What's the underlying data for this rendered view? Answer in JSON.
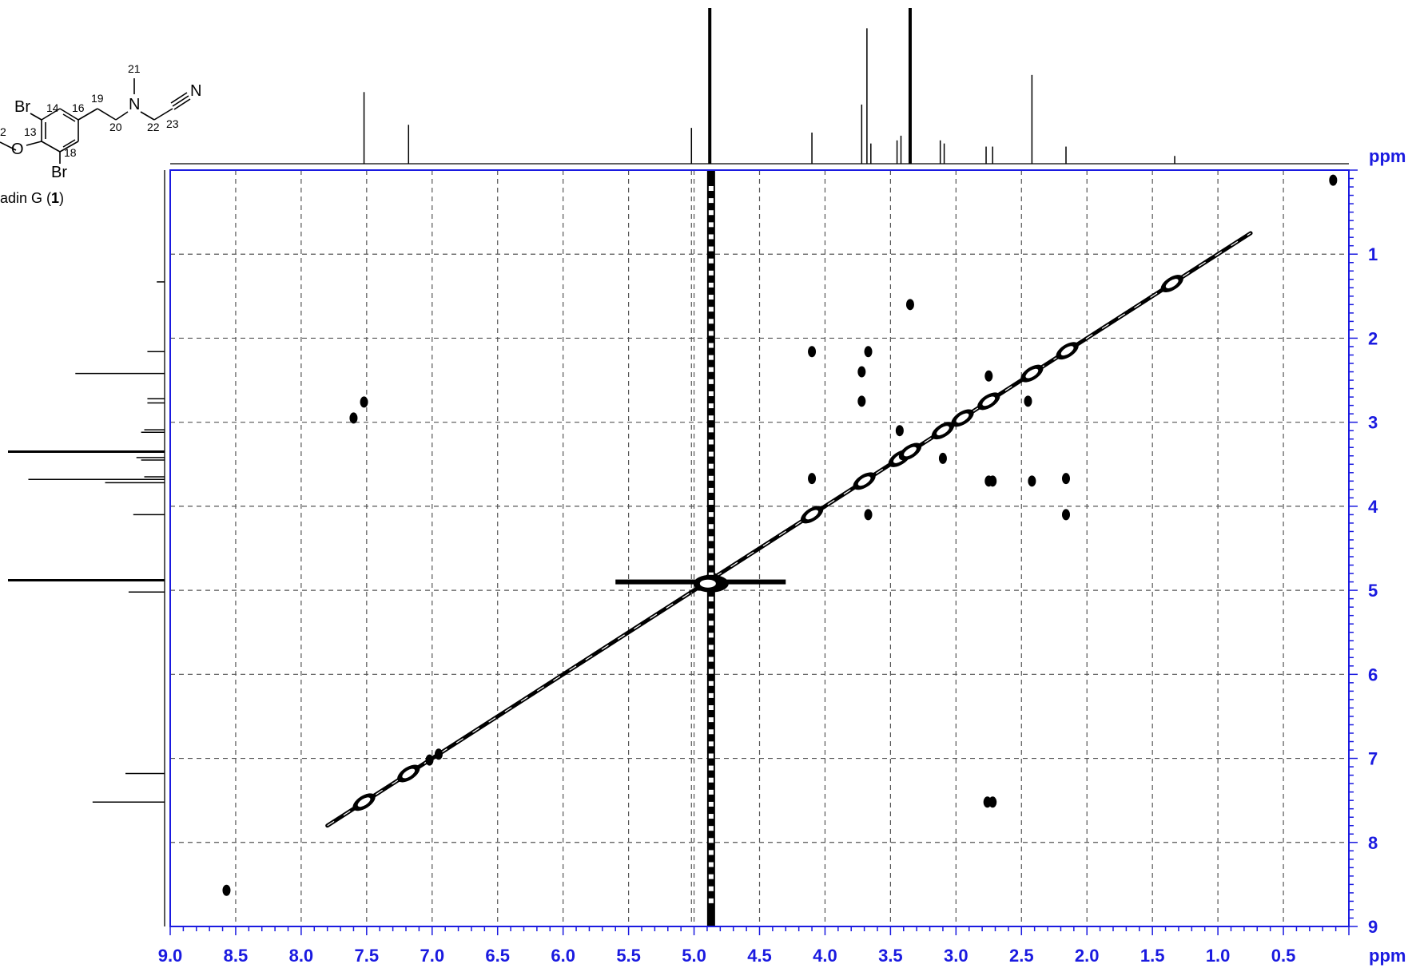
{
  "chart_data": {
    "type": "heatmap",
    "title": "",
    "xlabel": "ppm",
    "ylabel": "ppm",
    "xlim": [
      9.0,
      0.0
    ],
    "ylim": [
      0.0,
      9.0
    ],
    "x_ticks": [
      "9.0",
      "8.5",
      "8.0",
      "7.5",
      "7.0",
      "6.5",
      "6.0",
      "5.5",
      "5.0",
      "4.5",
      "4.0",
      "3.5",
      "3.0",
      "2.5",
      "2.0",
      "1.5",
      "1.0",
      "0.5"
    ],
    "y_ticks": [
      "1",
      "2",
      "3",
      "4",
      "5",
      "6",
      "7",
      "8",
      "9"
    ],
    "grid": true,
    "diagonal": {
      "from": 7.8,
      "to": 0.75
    },
    "diagonal_peaks": [
      7.52,
      7.18,
      4.9,
      4.1,
      3.7,
      3.43,
      3.35,
      3.1,
      2.95,
      2.75,
      2.42,
      2.15,
      1.35
    ],
    "solvent_ridge_x": 4.87,
    "cross_peaks": [
      {
        "x": 7.52,
        "y": 2.76
      },
      {
        "x": 7.6,
        "y": 2.95
      },
      {
        "x": 2.76,
        "y": 7.52
      },
      {
        "x": 2.72,
        "y": 7.52
      },
      {
        "x": 4.1,
        "y": 2.16
      },
      {
        "x": 3.67,
        "y": 2.16
      },
      {
        "x": 2.16,
        "y": 4.1
      },
      {
        "x": 2.16,
        "y": 3.67
      },
      {
        "x": 4.1,
        "y": 3.67
      },
      {
        "x": 3.67,
        "y": 4.1
      },
      {
        "x": 3.72,
        "y": 2.4
      },
      {
        "x": 3.72,
        "y": 2.75
      },
      {
        "x": 2.75,
        "y": 3.7
      },
      {
        "x": 2.72,
        "y": 3.7
      },
      {
        "x": 2.42,
        "y": 3.7
      },
      {
        "x": 3.1,
        "y": 3.43
      },
      {
        "x": 3.43,
        "y": 3.1
      },
      {
        "x": 2.75,
        "y": 2.45
      },
      {
        "x": 2.45,
        "y": 2.75
      },
      {
        "x": 3.35,
        "y": 1.6
      },
      {
        "x": 8.57,
        "y": 8.57
      },
      {
        "x": 0.12,
        "y": 0.12
      },
      {
        "x": 7.02,
        "y": 7.02
      },
      {
        "x": 6.95,
        "y": 6.95
      }
    ],
    "proton_peaks": [
      {
        "ppm": 7.52,
        "h": 0.46
      },
      {
        "ppm": 7.18,
        "h": 0.25
      },
      {
        "ppm": 5.02,
        "h": 0.23
      },
      {
        "ppm": 4.88,
        "h": 1.0
      },
      {
        "ppm": 4.1,
        "h": 0.2
      },
      {
        "ppm": 3.72,
        "h": 0.38
      },
      {
        "ppm": 3.68,
        "h": 0.87
      },
      {
        "ppm": 3.65,
        "h": 0.13
      },
      {
        "ppm": 3.45,
        "h": 0.15
      },
      {
        "ppm": 3.42,
        "h": 0.18
      },
      {
        "ppm": 3.35,
        "h": 1.0
      },
      {
        "ppm": 3.12,
        "h": 0.15
      },
      {
        "ppm": 3.09,
        "h": 0.13
      },
      {
        "ppm": 2.77,
        "h": 0.11
      },
      {
        "ppm": 2.72,
        "h": 0.11
      },
      {
        "ppm": 2.42,
        "h": 0.57
      },
      {
        "ppm": 2.16,
        "h": 0.11
      },
      {
        "ppm": 1.33,
        "h": 0.05
      }
    ]
  },
  "structure": {
    "atoms": {
      "br_top": "Br",
      "n14": "14",
      "n16": "16",
      "n19": "19",
      "n21": "21",
      "n_atom": "N",
      "n_triple": "N",
      "n20": "20",
      "n22": "22",
      "n23": "23",
      "n13": "13",
      "o_atom": "O",
      "n18": "18",
      "br_bottom": "Br",
      "n12": "2"
    },
    "caption_prefix": "adin G (",
    "caption_bold": "1",
    "caption_suffix": ")"
  },
  "colors": {
    "axis": "#1a1ae0",
    "grid": "#555555",
    "trace": "#000000"
  }
}
